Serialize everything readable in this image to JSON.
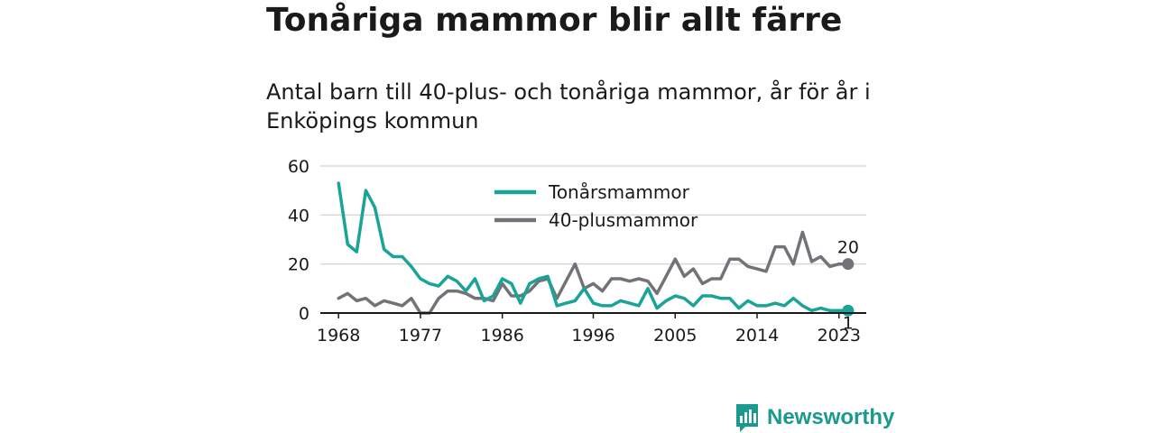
{
  "title": "Tonåriga mammor blir allt färre",
  "subtitle": "Antal barn till 40-plus- och tonåriga mammor, år för år i Enköpings kommun",
  "brand": "Newsworthy",
  "colors": {
    "teen": "#1aa397",
    "forty": "#737278",
    "grid": "#d8d8d8",
    "brand": "#1a9a8e"
  },
  "chart_data": {
    "type": "line",
    "x_ticks": [
      1968,
      1977,
      1986,
      1996,
      2005,
      2014,
      2023
    ],
    "y_ticks": [
      0,
      20,
      40,
      60
    ],
    "xlim": [
      1966,
      2026
    ],
    "ylim": [
      0,
      60
    ],
    "grid": true,
    "legend_position": "top-center",
    "x": [
      1968,
      1969,
      1970,
      1971,
      1972,
      1973,
      1974,
      1975,
      1976,
      1977,
      1978,
      1979,
      1980,
      1981,
      1982,
      1983,
      1984,
      1985,
      1986,
      1987,
      1988,
      1989,
      1990,
      1991,
      1992,
      1993,
      1994,
      1995,
      1996,
      1997,
      1998,
      1999,
      2000,
      2001,
      2002,
      2003,
      2004,
      2005,
      2006,
      2007,
      2008,
      2009,
      2010,
      2011,
      2012,
      2013,
      2014,
      2015,
      2016,
      2017,
      2018,
      2019,
      2020,
      2021,
      2022,
      2023,
      2024
    ],
    "series": [
      {
        "name": "Tonårsmammor",
        "color": "#1aa397",
        "end_label": "1",
        "values": [
          53,
          28,
          25,
          50,
          43,
          26,
          23,
          23,
          19,
          14,
          12,
          11,
          15,
          13,
          9,
          14,
          5,
          7,
          14,
          12,
          4,
          12,
          14,
          15,
          3,
          4,
          5,
          10,
          4,
          3,
          3,
          5,
          4,
          3,
          10,
          2,
          5,
          7,
          6,
          3,
          7,
          7,
          6,
          6,
          2,
          5,
          3,
          3,
          4,
          3,
          6,
          3,
          1,
          2,
          1,
          1,
          1
        ]
      },
      {
        "name": "40-plusmammor",
        "color": "#737278",
        "end_label": "20",
        "values": [
          6,
          8,
          5,
          6,
          3,
          5,
          4,
          3,
          6,
          0,
          0,
          6,
          9,
          9,
          8,
          6,
          6,
          5,
          12,
          7,
          7,
          9,
          13,
          14,
          6,
          13,
          20,
          10,
          12,
          9,
          14,
          14,
          13,
          14,
          13,
          8,
          15,
          22,
          15,
          18,
          12,
          14,
          14,
          22,
          22,
          19,
          18,
          17,
          27,
          27,
          20,
          33,
          21,
          23,
          19,
          20,
          20
        ]
      }
    ]
  }
}
